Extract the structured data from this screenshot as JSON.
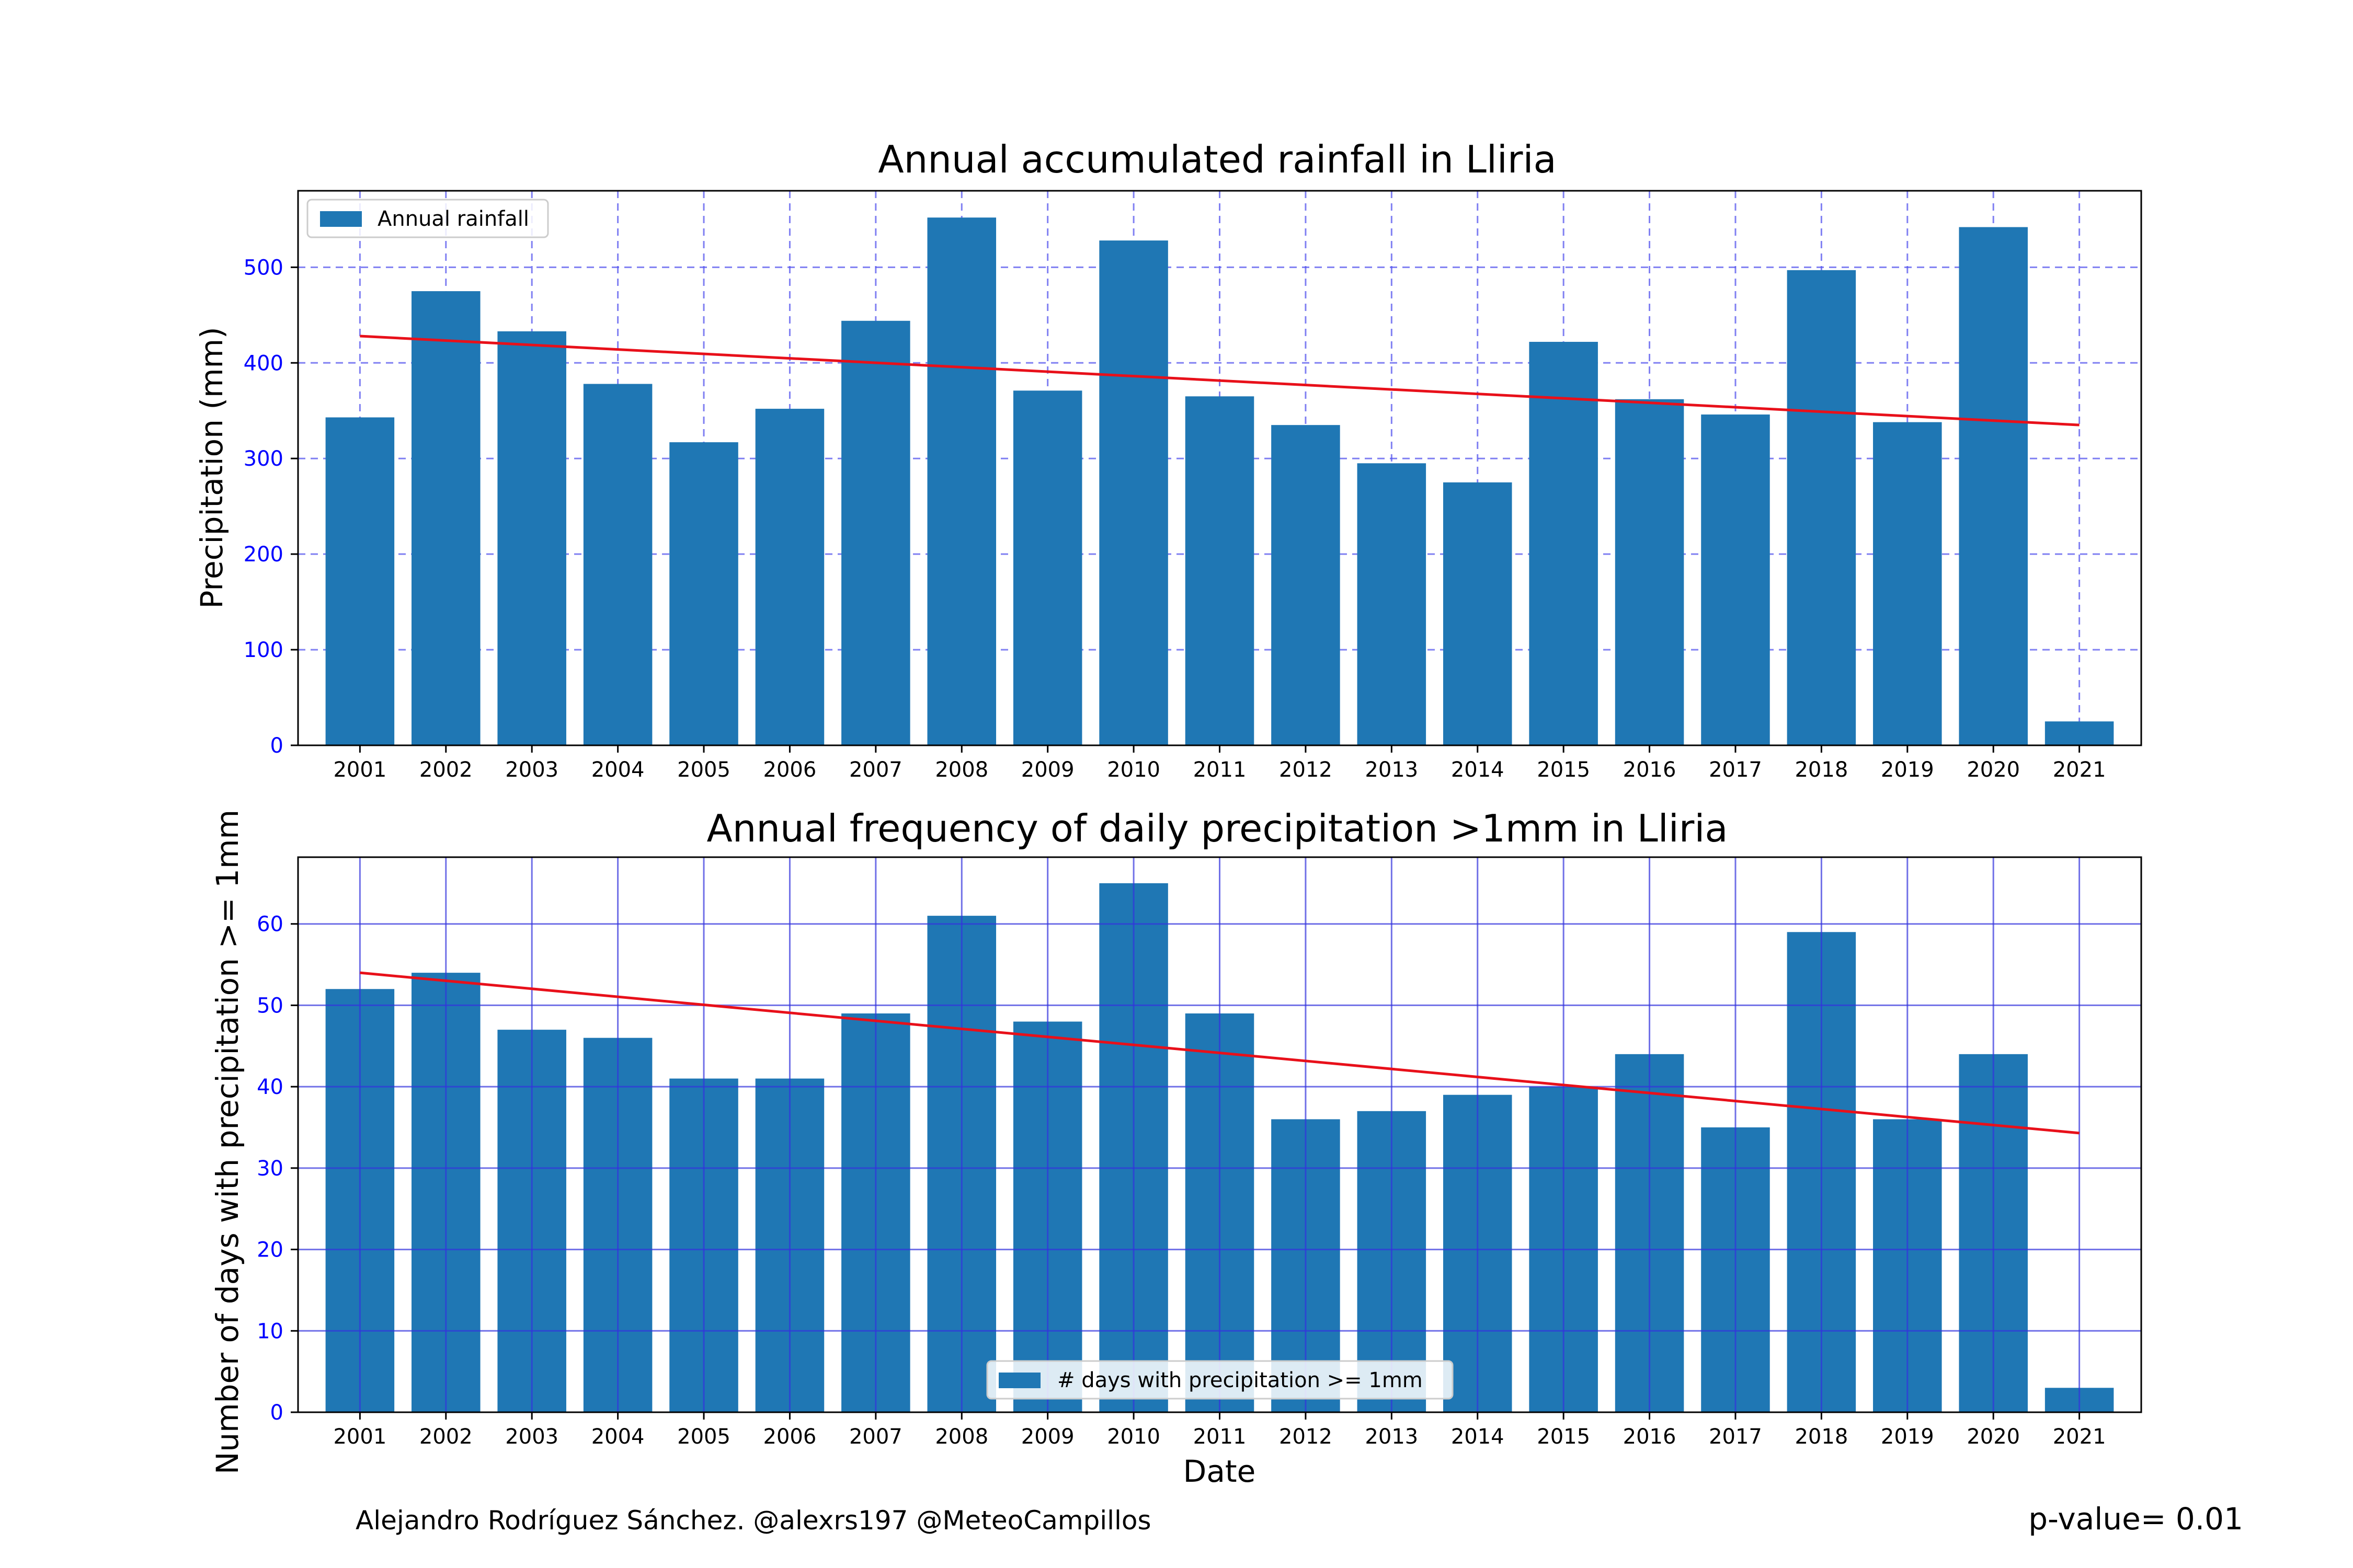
{
  "chart_data": [
    {
      "type": "bar",
      "title": "Annual accumulated rainfall in Lliria",
      "xlabel": "",
      "ylabel": "Precipitation (mm)",
      "categories": [
        "2001",
        "2002",
        "2003",
        "2004",
        "2005",
        "2006",
        "2007",
        "2008",
        "2009",
        "2010",
        "2011",
        "2012",
        "2013",
        "2014",
        "2015",
        "2016",
        "2017",
        "2018",
        "2019",
        "2020",
        "2021"
      ],
      "series": [
        {
          "name": "Annual rainfall",
          "values": [
            343,
            475,
            433,
            378,
            317,
            352,
            444,
            552,
            371,
            528,
            365,
            335,
            295,
            275,
            422,
            362,
            346,
            497,
            338,
            542,
            25
          ],
          "color": "#1f77b4"
        }
      ],
      "trend": {
        "start": 428,
        "end": 335,
        "color": "#e8101a"
      },
      "ylim": [
        0,
        580
      ],
      "yticks": [
        0,
        100,
        200,
        300,
        400,
        500
      ],
      "grid": {
        "on": true,
        "style": "dashed",
        "color": "#5555ee"
      },
      "legend": {
        "placement": "upper-left"
      },
      "tick_color": "#0000ff"
    },
    {
      "type": "bar",
      "title": "Annual frequency of daily precipitation >1mm in Lliria",
      "xlabel": "Date",
      "ylabel": "Number of days with precipitation >= 1mm",
      "categories": [
        "2001",
        "2002",
        "2003",
        "2004",
        "2005",
        "2006",
        "2007",
        "2008",
        "2009",
        "2010",
        "2011",
        "2012",
        "2013",
        "2014",
        "2015",
        "2016",
        "2017",
        "2018",
        "2019",
        "2020",
        "2021"
      ],
      "series": [
        {
          "name": "# days with precipitation >= 1mm",
          "values": [
            52,
            54,
            47,
            46,
            41,
            41,
            49,
            61,
            48,
            65,
            49,
            36,
            37,
            39,
            40,
            44,
            35,
            59,
            36,
            44,
            3
          ],
          "color": "#1f77b4"
        }
      ],
      "trend": {
        "start": 54,
        "end": 34.3,
        "color": "#e8101a"
      },
      "ylim": [
        0,
        68.2
      ],
      "yticks": [
        0,
        10,
        20,
        30,
        40,
        50,
        60
      ],
      "grid": {
        "on": true,
        "style": "solid",
        "color": "#3333dd"
      },
      "legend": {
        "placement": "lower-center"
      },
      "tick_color": "#0000ff"
    }
  ],
  "footer": {
    "credit": "Alejandro Rodríguez Sánchez. @alexrs197 @MeteoCampillos",
    "pvalue": "p-value= 0.01"
  }
}
